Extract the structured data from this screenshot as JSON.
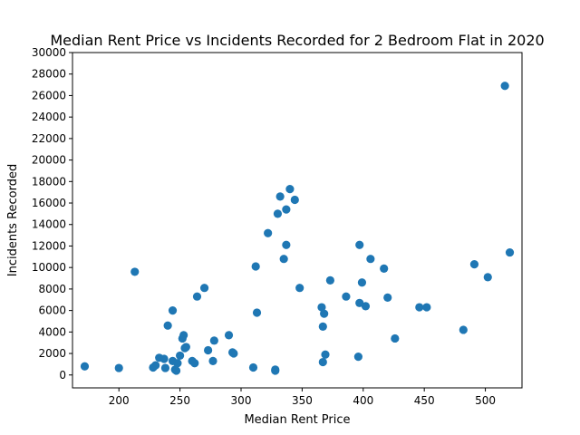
{
  "chart_data": {
    "type": "scatter",
    "title": "Median Rent Price vs Incidents Recorded for 2 Bedroom Flat in 2020",
    "xlabel": "Median Rent Price",
    "ylabel": "Incidents Recorded",
    "xlim": [
      162,
      530
    ],
    "ylim": [
      -1200,
      30000
    ],
    "x_ticks": [
      200,
      250,
      300,
      350,
      400,
      450,
      500
    ],
    "y_ticks": [
      0,
      2000,
      4000,
      6000,
      8000,
      10000,
      12000,
      14000,
      16000,
      18000,
      20000,
      22000,
      24000,
      26000,
      28000,
      30000
    ],
    "grid": false,
    "point_color": "#1f77b4",
    "series": [
      {
        "points": [
          [
            172,
            800
          ],
          [
            200,
            650
          ],
          [
            213,
            9600
          ],
          [
            228,
            700
          ],
          [
            230,
            900
          ],
          [
            233,
            1600
          ],
          [
            237,
            1500
          ],
          [
            238,
            650
          ],
          [
            240,
            4600
          ],
          [
            244,
            6000
          ],
          [
            244,
            1300
          ],
          [
            246,
            500
          ],
          [
            247,
            400
          ],
          [
            248,
            1100
          ],
          [
            250,
            1800
          ],
          [
            252,
            3400
          ],
          [
            253,
            3700
          ],
          [
            254,
            2500
          ],
          [
            255,
            2600
          ],
          [
            260,
            1300
          ],
          [
            262,
            1100
          ],
          [
            264,
            7300
          ],
          [
            270,
            8100
          ],
          [
            273,
            2300
          ],
          [
            277,
            1300
          ],
          [
            278,
            3200
          ],
          [
            290,
            3700
          ],
          [
            293,
            2100
          ],
          [
            294,
            2000
          ],
          [
            310,
            700
          ],
          [
            312,
            10100
          ],
          [
            313,
            5800
          ],
          [
            322,
            13200
          ],
          [
            328,
            500
          ],
          [
            328,
            400
          ],
          [
            330,
            15000
          ],
          [
            332,
            16600
          ],
          [
            335,
            10800
          ],
          [
            337,
            15400
          ],
          [
            337,
            12100
          ],
          [
            340,
            17300
          ],
          [
            344,
            16300
          ],
          [
            348,
            8100
          ],
          [
            366,
            6300
          ],
          [
            367,
            4500
          ],
          [
            367,
            1200
          ],
          [
            368,
            5700
          ],
          [
            369,
            1900
          ],
          [
            373,
            8800
          ],
          [
            386,
            7300
          ],
          [
            396,
            1700
          ],
          [
            397,
            12100
          ],
          [
            397,
            6700
          ],
          [
            399,
            8600
          ],
          [
            402,
            6400
          ],
          [
            406,
            10800
          ],
          [
            417,
            9900
          ],
          [
            420,
            7200
          ],
          [
            426,
            3400
          ],
          [
            446,
            6300
          ],
          [
            452,
            6300
          ],
          [
            482,
            4200
          ],
          [
            491,
            10300
          ],
          [
            502,
            9100
          ],
          [
            516,
            26900
          ],
          [
            520,
            11400
          ]
        ]
      }
    ]
  }
}
